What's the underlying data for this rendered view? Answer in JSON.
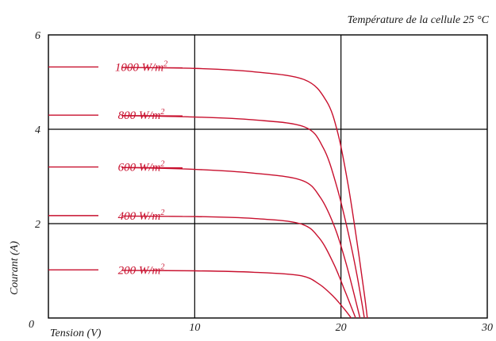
{
  "chart_data": {
    "type": "line",
    "title": "Température de la cellule 25 °C",
    "xlabel": "Tension (V)",
    "ylabel": "Courant (A)",
    "xlim": [
      0,
      30
    ],
    "ylim": [
      0,
      6
    ],
    "grid": true,
    "x_ticks": [
      "0",
      "10",
      "20",
      "30"
    ],
    "y_ticks": [
      "2",
      "4",
      "6"
    ],
    "colors": {
      "curve": "#c8102e",
      "grid": "#000000"
    },
    "series": [
      {
        "name": "1000 W/m²",
        "label_main": "1000 W/m",
        "label_sup": "2",
        "points": [
          [
            0,
            5.32
          ],
          [
            5,
            5.31
          ],
          [
            10,
            5.29
          ],
          [
            14,
            5.22
          ],
          [
            17.5,
            5.05
          ],
          [
            19,
            4.6
          ],
          [
            19.8,
            3.9
          ],
          [
            20.5,
            2.8
          ],
          [
            21.1,
            1.6
          ],
          [
            21.6,
            0.5
          ],
          [
            21.8,
            0
          ]
        ]
      },
      {
        "name": "800 W/m²",
        "label_main": "800 W/m",
        "label_sup": "2",
        "points": [
          [
            0,
            4.3
          ],
          [
            5,
            4.29
          ],
          [
            10,
            4.26
          ],
          [
            14,
            4.2
          ],
          [
            17.5,
            4.05
          ],
          [
            18.8,
            3.6
          ],
          [
            19.7,
            2.8
          ],
          [
            20.5,
            1.8
          ],
          [
            21.1,
            0.9
          ],
          [
            21.6,
            0
          ]
        ]
      },
      {
        "name": "600 W/m²",
        "label_main": "600 W/m",
        "label_sup": "2",
        "points": [
          [
            0,
            3.2
          ],
          [
            5,
            3.19
          ],
          [
            10,
            3.15
          ],
          [
            14,
            3.07
          ],
          [
            17.3,
            2.92
          ],
          [
            18.6,
            2.55
          ],
          [
            19.6,
            1.9
          ],
          [
            20.4,
            1.1
          ],
          [
            21.3,
            0
          ]
        ]
      },
      {
        "name": "400 W/m²",
        "label_main": "400 W/m",
        "label_sup": "2",
        "points": [
          [
            0,
            2.17
          ],
          [
            5,
            2.16
          ],
          [
            10,
            2.15
          ],
          [
            14,
            2.11
          ],
          [
            17.2,
            2.0
          ],
          [
            18.5,
            1.7
          ],
          [
            19.5,
            1.15
          ],
          [
            20.3,
            0.55
          ],
          [
            21.0,
            0
          ]
        ]
      },
      {
        "name": "200 W/m²",
        "label_main": "200 W/m",
        "label_sup": "2",
        "points": [
          [
            0,
            1.02
          ],
          [
            5,
            1.01
          ],
          [
            10,
            1.0
          ],
          [
            14,
            0.97
          ],
          [
            17.2,
            0.9
          ],
          [
            18.5,
            0.72
          ],
          [
            19.5,
            0.45
          ],
          [
            20.2,
            0.2
          ],
          [
            20.7,
            0
          ]
        ]
      }
    ]
  }
}
